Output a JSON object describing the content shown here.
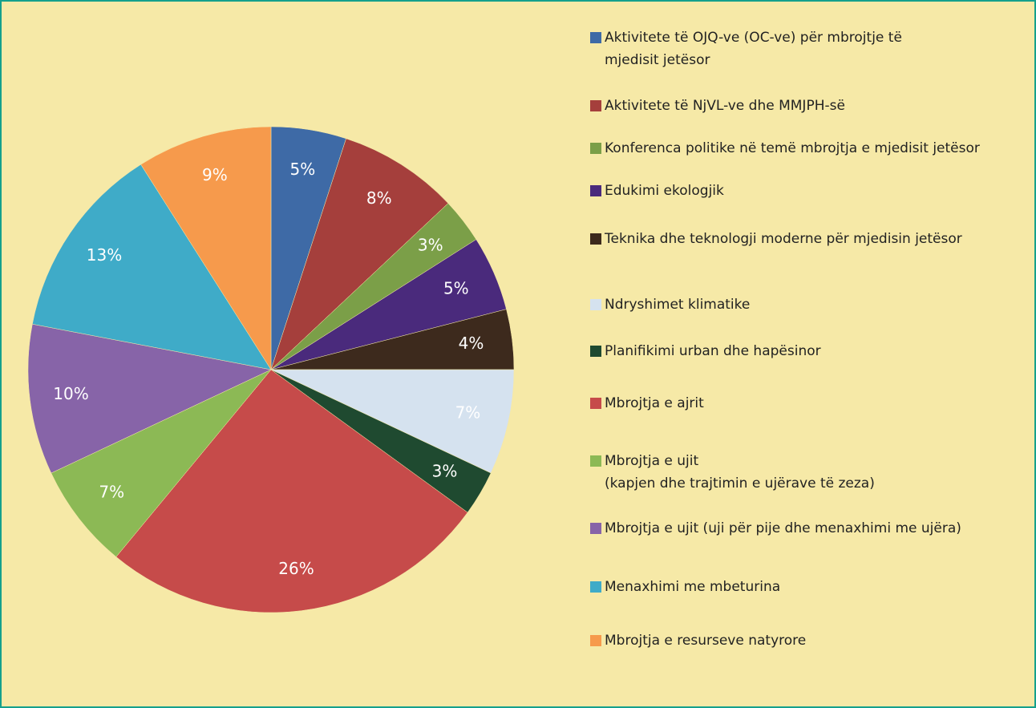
{
  "chart_data": {
    "type": "pie",
    "categories": [
      "Aktivitete të OJQ-ve (OC-ve) për mbrojtje të\n mjedisit jetësor",
      "Aktivitete të NjVL-ve dhe MMJPH-së",
      "Konferenca politike në temë mbrojtja e mjedisit jetësor",
      "Edukimi ekologjik",
      "Teknika dhe teknologji moderne për mjedisin jetësor",
      "Ndryshimet klimatike",
      "Planifikimi urban dhe hapësinor",
      "Mbrojtja e ajrit",
      "Mbrojtja e ujit\n (kapjen dhe trajtimin e ujërave të zeza)",
      "Mbrojtja e ujit (uji për pije dhe menaxhimi me ujëra)",
      "Menaxhimi me mbeturina",
      "Mbrojtja e resurseve natyrore"
    ],
    "values": [
      5,
      8,
      3,
      5,
      4,
      7,
      3,
      26,
      7,
      10,
      13,
      9
    ],
    "value_labels": [
      "5%",
      "8%",
      "3%",
      "5%",
      "4%",
      "7%",
      "3%",
      "26%",
      "7%",
      "10%",
      "13%",
      "9%"
    ],
    "colors": [
      "#3e6aa6",
      "#a53f3c",
      "#7b9f48",
      "#4a2a7c",
      "#3d2a1d",
      "#d5e2ef",
      "#1f4a30",
      "#c64b4a",
      "#8cb955",
      "#8764a8",
      "#3fabc8",
      "#f69a4c"
    ],
    "legend": "right"
  }
}
